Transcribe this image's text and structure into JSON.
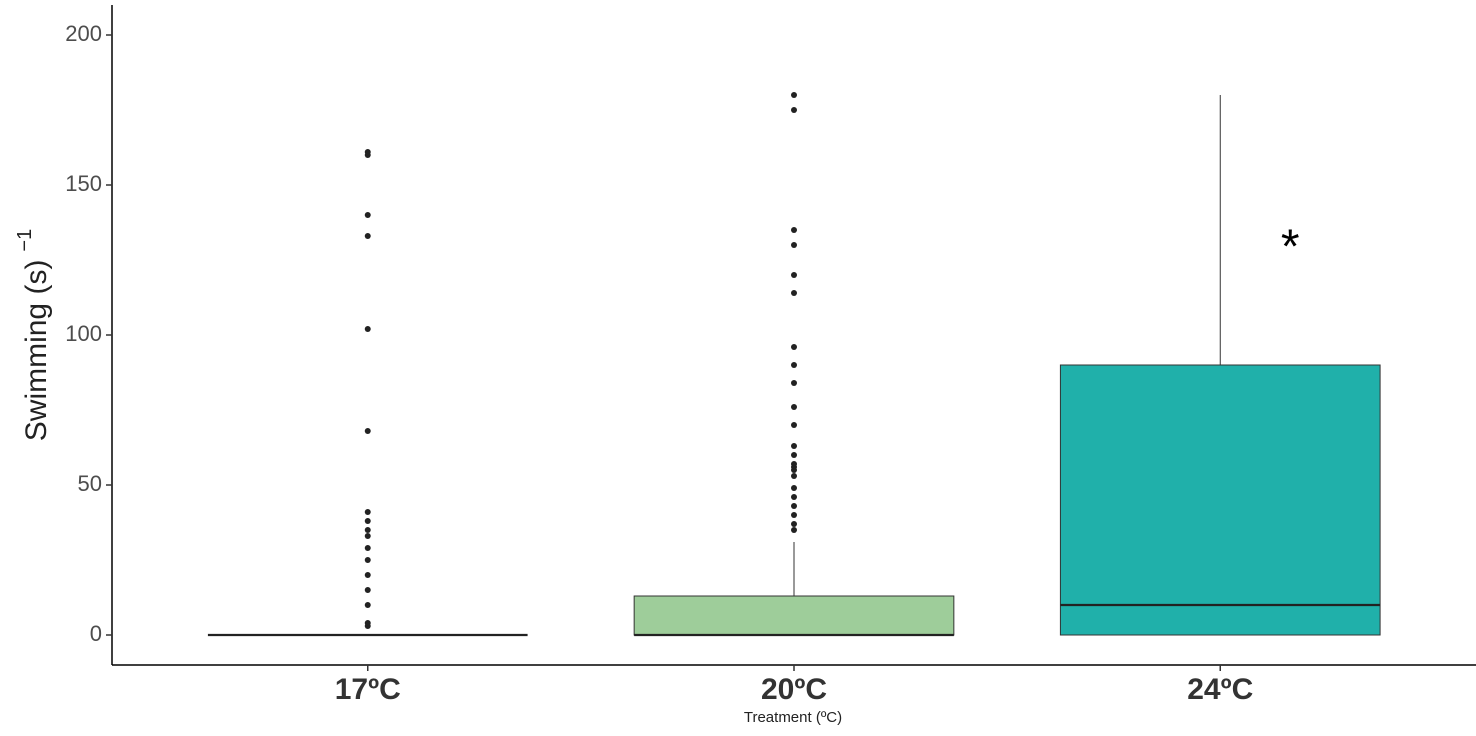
{
  "chart_data": {
    "type": "box",
    "x_label": "Treatment (ºC)",
    "y_label": "Swimming (s)",
    "y_label_superscript": "−1",
    "categories": [
      "17ºC",
      "20ºC",
      "24ºC"
    ],
    "boxes": [
      {
        "whislo": 0,
        "q1": 0,
        "med": 0,
        "q3": 0,
        "whishi": 0,
        "fliers": [
          3,
          4,
          10,
          15,
          20,
          25,
          29,
          33,
          35,
          38,
          41,
          68,
          102,
          133,
          140,
          160,
          161
        ]
      },
      {
        "whislo": 0,
        "q1": 0,
        "med": 0,
        "q3": 13,
        "whishi": 31,
        "color": "#9ecd9a",
        "fliers": [
          35,
          37,
          40,
          43,
          46,
          49,
          53,
          55,
          56,
          57,
          60,
          63,
          70,
          76,
          84,
          90,
          96,
          114,
          120,
          130,
          135,
          175,
          180
        ]
      },
      {
        "whislo": 0,
        "q1": 0,
        "med": 10,
        "q3": 90,
        "whishi": 180,
        "color": "#20b0aa",
        "fliers": []
      }
    ],
    "annotations": [
      {
        "text": "*",
        "category": 2
      }
    ],
    "ylim": [
      -10,
      210
    ],
    "yticks": [
      0,
      50,
      100,
      150,
      200
    ],
    "grid": false
  }
}
